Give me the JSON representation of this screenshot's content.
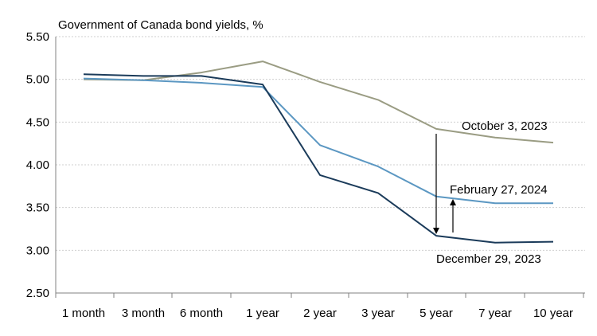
{
  "chart_data": {
    "type": "line",
    "title": "Government of Canada bond yields, %",
    "xlabel": "",
    "ylabel": "",
    "categories": [
      "1 month",
      "3 month",
      "6 month",
      "1 year",
      "2 year",
      "3 year",
      "5 year",
      "7 year",
      "10 year"
    ],
    "x_positions": [
      0,
      0.25,
      0.5,
      1,
      2,
      3,
      5,
      7,
      10
    ],
    "y_ticks": [
      "5.50",
      "5.00",
      "4.50",
      "4.00",
      "3.50",
      "3.00",
      "2.50"
    ],
    "ylim": [
      2.5,
      5.5
    ],
    "grid": "horizontal-dashed",
    "series": [
      {
        "name": "October 3, 2023",
        "color": "#9a9c83",
        "values": [
          5.0,
          4.99,
          5.08,
          5.21,
          4.97,
          4.76,
          4.42,
          4.32,
          4.26
        ]
      },
      {
        "name": "February 27, 2024",
        "color": "#5b97c2",
        "values": [
          5.01,
          4.99,
          4.96,
          4.91,
          4.23,
          3.98,
          3.63,
          3.55,
          3.55
        ]
      },
      {
        "name": "December 29, 2023",
        "color": "#1b3b5a",
        "values": [
          5.06,
          5.04,
          5.04,
          4.94,
          3.88,
          3.67,
          3.17,
          3.09,
          3.1
        ]
      }
    ]
  }
}
